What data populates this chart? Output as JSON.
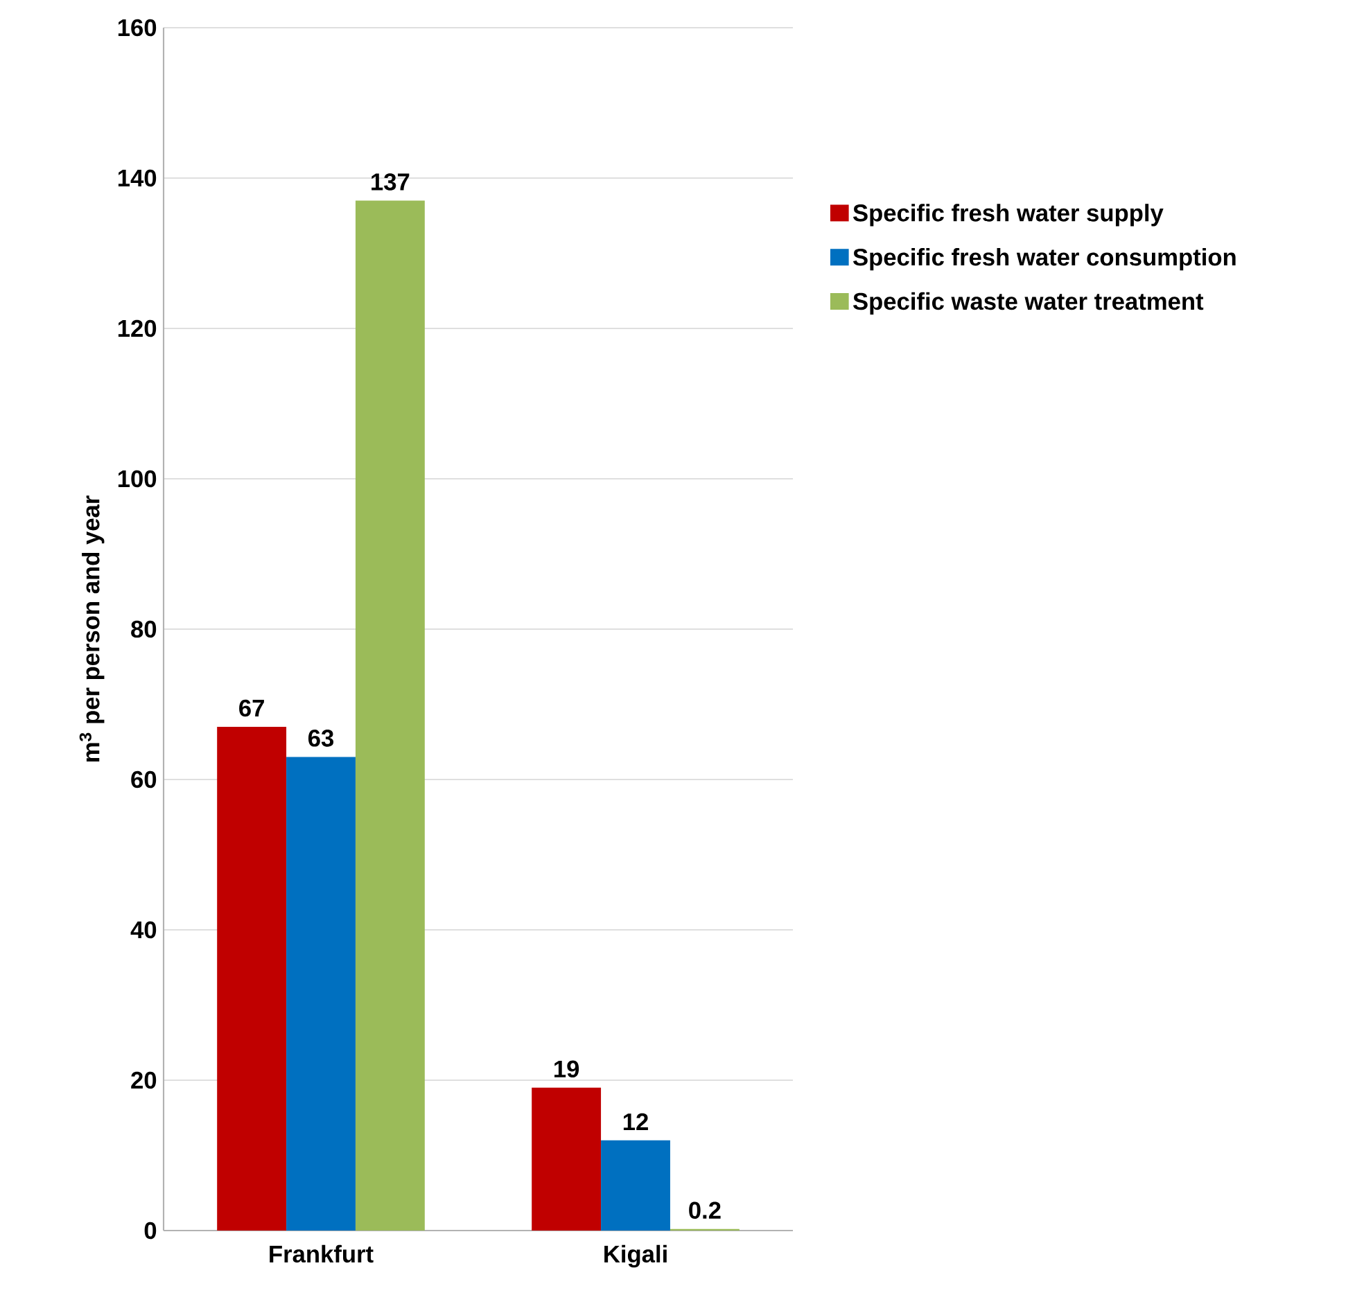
{
  "chart_data": {
    "type": "bar",
    "ylabel": "m$^{3}$ per person and year",
    "categories": [
      "Frankfurt",
      "Kigali"
    ],
    "series": [
      {
        "name": "Specific fresh water supply",
        "color": "#c00000",
        "values": [
          67,
          19
        ]
      },
      {
        "name": "Specific fresh water consumption",
        "color": "#0070c0",
        "values": [
          63,
          12
        ]
      },
      {
        "name": "Specific waste water treatment",
        "color": "#9bbb59",
        "values": [
          137,
          0.2
        ]
      }
    ],
    "ylim": [
      0,
      160
    ],
    "yticks": [
      0,
      20,
      40,
      60,
      80,
      100,
      120,
      140,
      160
    ],
    "grid": "y",
    "legend": "right",
    "data_labels": true
  }
}
